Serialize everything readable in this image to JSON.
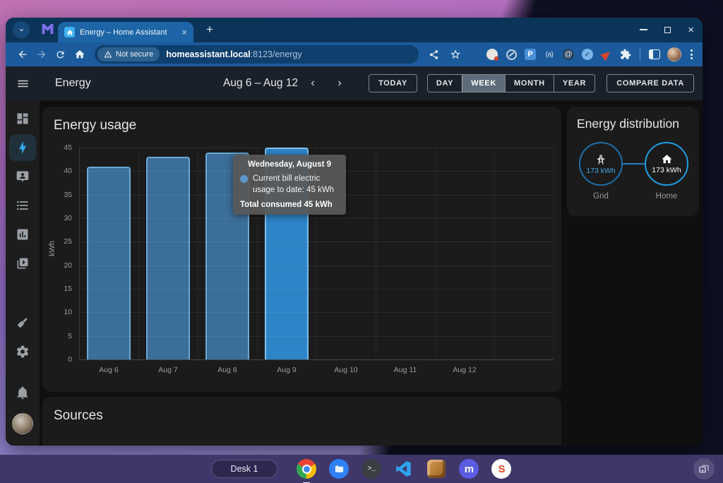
{
  "browser": {
    "tab_title": "Energy – Home Assistant",
    "security_label": "Not secure",
    "url_host": "homeassistant.local",
    "url_path": ":8123/energy",
    "extensions": {
      "p_glyph": "P",
      "a_glyph": "(a)",
      "at_glyph": "@",
      "check_glyph": "✓"
    }
  },
  "app": {
    "header": {
      "title": "Energy",
      "date_range": "Aug 6 – Aug 12",
      "today_label": "TODAY",
      "periods": [
        "DAY",
        "WEEK",
        "MONTH",
        "YEAR"
      ],
      "selected_period": "WEEK",
      "compare_label": "COMPARE DATA"
    },
    "usage_card": {
      "title": "Energy usage"
    },
    "tooltip": {
      "title": "Wednesday, August 9",
      "series_line": "Current bill electric usage to date: 45 kWh",
      "total_line": "Total consumed 45 kWh"
    },
    "distribution": {
      "title": "Energy distribution",
      "grid_value": "173 kWh",
      "grid_label": "Grid",
      "home_value": "173 kWh",
      "home_label": "Home"
    },
    "sources_card": {
      "title": "Sources"
    }
  },
  "chart_data": {
    "type": "bar",
    "title": "Energy usage",
    "series_name": "Current bill electric usage to date",
    "categories": [
      "Aug 6",
      "Aug 7",
      "Aug 8",
      "Aug 9",
      "Aug 10",
      "Aug 11",
      "Aug 12"
    ],
    "values": [
      41,
      43,
      44,
      45,
      0,
      0,
      0
    ],
    "xlabel": "",
    "ylabel": "kWh",
    "ylim": [
      0,
      45
    ],
    "ytick_step": 5,
    "grid": true,
    "hovered_index": 3,
    "hovered_value_kwh": 45,
    "colors": {
      "bar_fill": "#3b6e99",
      "bar_border": "#69a8d6",
      "bar_hover": "#2d84c6",
      "accent_blue": "#35a9ee",
      "grid_value_blue": "#45a1e0"
    }
  },
  "shelf": {
    "desk_label": "Desk 1",
    "terminal_glyph": ">_",
    "mastodon_glyph": "m",
    "s_glyph": "S"
  }
}
